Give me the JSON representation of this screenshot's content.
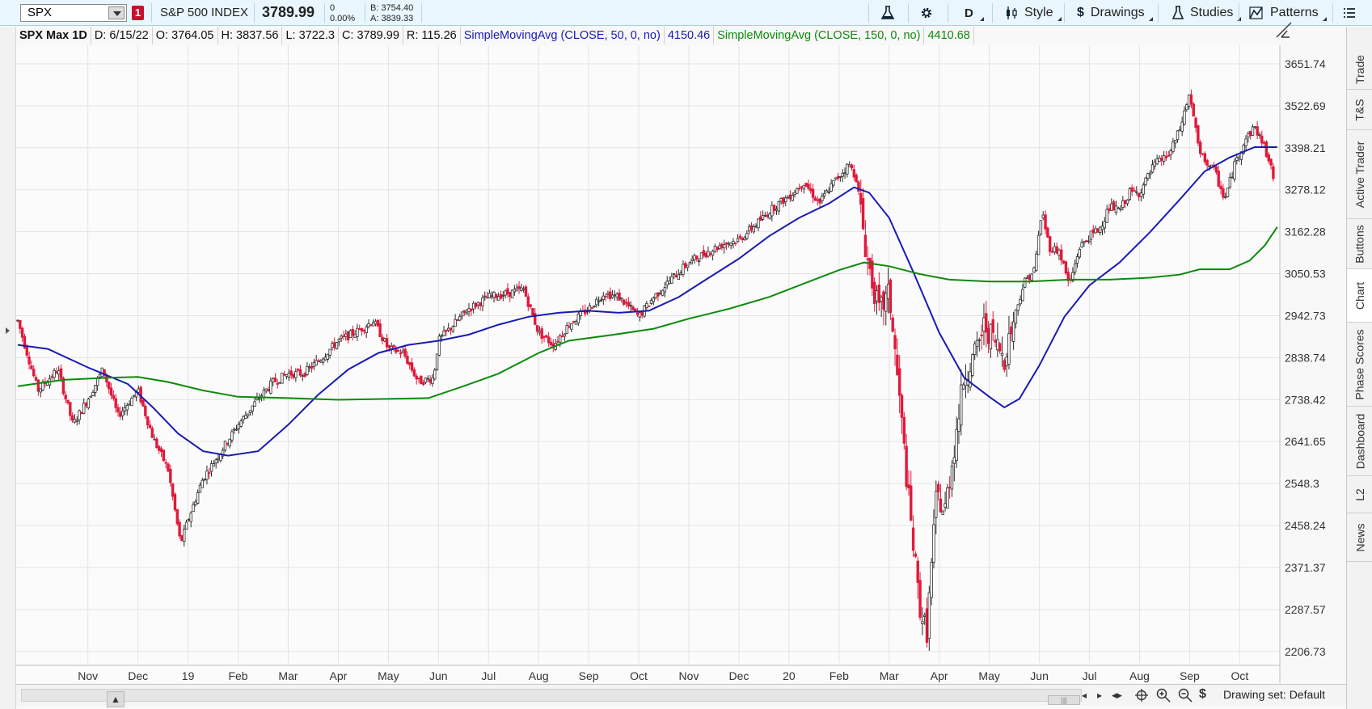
{
  "toolbar": {
    "symbol": "SPX",
    "link_badge": "1",
    "index_name": "S&P 500 INDEX",
    "last_price": "3789.99",
    "net_change": "0",
    "pct_change": "0.00%",
    "bid": "B: 3754.40",
    "ask": "A: 3839.33",
    "aggregation": "D",
    "style_label": "Style",
    "drawings_label": "Drawings",
    "studies_label": "Studies",
    "patterns_label": "Patterns"
  },
  "info": {
    "title": "SPX Max 1D",
    "date": "D: 6/15/22",
    "open": "O: 3764.05",
    "high": "H: 3837.56",
    "low": "L: 3722.3",
    "close": "C: 3789.99",
    "range": "R: 115.26",
    "sma50_label": "SimpleMovingAvg (CLOSE, 50, 0, no)",
    "sma50_value": "4150.46",
    "sma150_label": "SimpleMovingAvg (CLOSE, 150, 0, no)",
    "sma150_value": "4410.68"
  },
  "side_tabs": [
    "Trade",
    "T&S",
    "Active Trader",
    "Buttons",
    "Chart",
    "Phase Scores",
    "Dashboard",
    "L2",
    "News"
  ],
  "bottom": {
    "drawing_set": "Drawing set: Default"
  },
  "colors": {
    "up_candle": "#2b2b2b",
    "down_candle": "#e0193b",
    "sma50": "#1a1ab4",
    "sma150": "#0c8a0c",
    "grid": "#e3e3e3"
  },
  "chart_data": {
    "type": "candlestick",
    "y_axis_ticks": [
      "3651.74",
      "3522.69",
      "3398.21",
      "3278.12",
      "3162.28",
      "3050.53",
      "2942.73",
      "2838.74",
      "2738.42",
      "2641.65",
      "2548.3",
      "2458.24",
      "2371.37",
      "2287.57",
      "2206.73"
    ],
    "y_scale": "log",
    "ylim": [
      2170,
      3700
    ],
    "x_axis_labels": [
      "Nov",
      "Dec",
      "19",
      "Feb",
      "Mar",
      "Apr",
      "May",
      "Jun",
      "Jul",
      "Aug",
      "Sep",
      "Oct",
      "Nov",
      "Dec",
      "20",
      "Feb",
      "Mar",
      "Apr",
      "May",
      "Jun",
      "Jul",
      "Aug",
      "Sep",
      "Oct"
    ],
    "x_axis_label_months": [
      10,
      11,
      12,
      13,
      14,
      15,
      16,
      17,
      18,
      19,
      20,
      21,
      22,
      23,
      24,
      25,
      26,
      27,
      28,
      29,
      30,
      31,
      32,
      33
    ],
    "x_range_months": [
      8.6,
      33.85
    ],
    "grid": true,
    "price_path": [
      {
        "m": 8.6,
        "v": 2930
      },
      {
        "m": 9.0,
        "v": 2760
      },
      {
        "m": 9.4,
        "v": 2810
      },
      {
        "m": 9.7,
        "v": 2680
      },
      {
        "m": 10.0,
        "v": 2740
      },
      {
        "m": 10.3,
        "v": 2810
      },
      {
        "m": 10.6,
        "v": 2700
      },
      {
        "m": 11.0,
        "v": 2760
      },
      {
        "m": 11.3,
        "v": 2650
      },
      {
        "m": 11.6,
        "v": 2580
      },
      {
        "m": 11.85,
        "v": 2420
      },
      {
        "m": 12.0,
        "v": 2470
      },
      {
        "m": 12.3,
        "v": 2560
      },
      {
        "m": 12.6,
        "v": 2610
      },
      {
        "m": 13.0,
        "v": 2680
      },
      {
        "m": 13.4,
        "v": 2740
      },
      {
        "m": 13.7,
        "v": 2780
      },
      {
        "m": 14.0,
        "v": 2800
      },
      {
        "m": 14.3,
        "v": 2800
      },
      {
        "m": 14.6,
        "v": 2830
      },
      {
        "m": 15.0,
        "v": 2880
      },
      {
        "m": 15.4,
        "v": 2905
      },
      {
        "m": 15.7,
        "v": 2930
      },
      {
        "m": 16.0,
        "v": 2860
      },
      {
        "m": 16.3,
        "v": 2850
      },
      {
        "m": 16.6,
        "v": 2780
      },
      {
        "m": 16.9,
        "v": 2790
      },
      {
        "m": 17.0,
        "v": 2880
      },
      {
        "m": 17.3,
        "v": 2920
      },
      {
        "m": 17.6,
        "v": 2960
      },
      {
        "m": 18.0,
        "v": 2990
      },
      {
        "m": 18.4,
        "v": 3000
      },
      {
        "m": 18.7,
        "v": 3010
      },
      {
        "m": 19.0,
        "v": 2900
      },
      {
        "m": 19.3,
        "v": 2870
      },
      {
        "m": 19.6,
        "v": 2920
      },
      {
        "m": 20.0,
        "v": 2960
      },
      {
        "m": 20.3,
        "v": 3000
      },
      {
        "m": 20.6,
        "v": 2990
      },
      {
        "m": 21.0,
        "v": 2940
      },
      {
        "m": 21.3,
        "v": 2990
      },
      {
        "m": 21.6,
        "v": 3030
      },
      {
        "m": 22.0,
        "v": 3080
      },
      {
        "m": 22.4,
        "v": 3110
      },
      {
        "m": 22.7,
        "v": 3130
      },
      {
        "m": 23.0,
        "v": 3140
      },
      {
        "m": 23.4,
        "v": 3190
      },
      {
        "m": 23.7,
        "v": 3230
      },
      {
        "m": 24.0,
        "v": 3260
      },
      {
        "m": 24.3,
        "v": 3300
      },
      {
        "m": 24.6,
        "v": 3240
      },
      {
        "m": 24.9,
        "v": 3300
      },
      {
        "m": 25.2,
        "v": 3350
      },
      {
        "m": 25.35,
        "v": 3310
      },
      {
        "m": 25.55,
        "v": 3100
      },
      {
        "m": 25.8,
        "v": 2950
      },
      {
        "m": 26.0,
        "v": 3000
      },
      {
        "m": 26.2,
        "v": 2750
      },
      {
        "m": 26.4,
        "v": 2500
      },
      {
        "m": 26.6,
        "v": 2300
      },
      {
        "m": 26.75,
        "v": 2240
      },
      {
        "m": 26.95,
        "v": 2530
      },
      {
        "m": 27.1,
        "v": 2480
      },
      {
        "m": 27.3,
        "v": 2630
      },
      {
        "m": 27.5,
        "v": 2800
      },
      {
        "m": 27.7,
        "v": 2840
      },
      {
        "m": 27.9,
        "v": 2920
      },
      {
        "m": 28.1,
        "v": 2880
      },
      {
        "m": 28.3,
        "v": 2840
      },
      {
        "m": 28.5,
        "v": 2940
      },
      {
        "m": 28.7,
        "v": 3030
      },
      {
        "m": 28.9,
        "v": 3060
      },
      {
        "m": 29.05,
        "v": 3220
      },
      {
        "m": 29.2,
        "v": 3120
      },
      {
        "m": 29.4,
        "v": 3110
      },
      {
        "m": 29.6,
        "v": 3020
      },
      {
        "m": 29.8,
        "v": 3120
      },
      {
        "m": 30.0,
        "v": 3150
      },
      {
        "m": 30.2,
        "v": 3170
      },
      {
        "m": 30.4,
        "v": 3230
      },
      {
        "m": 30.6,
        "v": 3220
      },
      {
        "m": 30.8,
        "v": 3270
      },
      {
        "m": 31.0,
        "v": 3270
      },
      {
        "m": 31.3,
        "v": 3350
      },
      {
        "m": 31.6,
        "v": 3380
      },
      {
        "m": 31.8,
        "v": 3450
      },
      {
        "m": 32.0,
        "v": 3560
      },
      {
        "m": 32.2,
        "v": 3380
      },
      {
        "m": 32.5,
        "v": 3330
      },
      {
        "m": 32.7,
        "v": 3250
      },
      {
        "m": 32.9,
        "v": 3350
      },
      {
        "m": 33.1,
        "v": 3420
      },
      {
        "m": 33.3,
        "v": 3460
      },
      {
        "m": 33.5,
        "v": 3400
      },
      {
        "m": 33.7,
        "v": 3300
      }
    ],
    "series": [
      {
        "name": "SimpleMovingAvg (CLOSE, 50, 0, no)",
        "points": [
          {
            "m": 8.6,
            "v": 2870
          },
          {
            "m": 9.2,
            "v": 2860
          },
          {
            "m": 10.0,
            "v": 2815
          },
          {
            "m": 10.8,
            "v": 2775
          },
          {
            "m": 11.3,
            "v": 2720
          },
          {
            "m": 11.8,
            "v": 2660
          },
          {
            "m": 12.3,
            "v": 2620
          },
          {
            "m": 12.8,
            "v": 2610
          },
          {
            "m": 13.4,
            "v": 2620
          },
          {
            "m": 14.0,
            "v": 2680
          },
          {
            "m": 14.6,
            "v": 2750
          },
          {
            "m": 15.2,
            "v": 2810
          },
          {
            "m": 15.8,
            "v": 2850
          },
          {
            "m": 16.4,
            "v": 2870
          },
          {
            "m": 17.0,
            "v": 2880
          },
          {
            "m": 17.6,
            "v": 2895
          },
          {
            "m": 18.2,
            "v": 2920
          },
          {
            "m": 18.8,
            "v": 2940
          },
          {
            "m": 19.4,
            "v": 2950
          },
          {
            "m": 20.0,
            "v": 2955
          },
          {
            "m": 20.6,
            "v": 2950
          },
          {
            "m": 21.2,
            "v": 2955
          },
          {
            "m": 21.8,
            "v": 2990
          },
          {
            "m": 22.4,
            "v": 3040
          },
          {
            "m": 23.0,
            "v": 3090
          },
          {
            "m": 23.6,
            "v": 3150
          },
          {
            "m": 24.2,
            "v": 3200
          },
          {
            "m": 24.8,
            "v": 3240
          },
          {
            "m": 25.3,
            "v": 3285
          },
          {
            "m": 25.6,
            "v": 3270
          },
          {
            "m": 26.0,
            "v": 3200
          },
          {
            "m": 26.5,
            "v": 3050
          },
          {
            "m": 27.0,
            "v": 2900
          },
          {
            "m": 27.5,
            "v": 2790
          },
          {
            "m": 28.0,
            "v": 2745
          },
          {
            "m": 28.3,
            "v": 2720
          },
          {
            "m": 28.6,
            "v": 2740
          },
          {
            "m": 29.0,
            "v": 2820
          },
          {
            "m": 29.5,
            "v": 2940
          },
          {
            "m": 30.0,
            "v": 3020
          },
          {
            "m": 30.6,
            "v": 3080
          },
          {
            "m": 31.2,
            "v": 3160
          },
          {
            "m": 31.8,
            "v": 3250
          },
          {
            "m": 32.3,
            "v": 3330
          },
          {
            "m": 32.8,
            "v": 3370
          },
          {
            "m": 33.3,
            "v": 3400
          },
          {
            "m": 33.75,
            "v": 3400
          }
        ]
      },
      {
        "name": "SimpleMovingAvg (CLOSE, 150, 0, no)",
        "points": [
          {
            "m": 8.6,
            "v": 2770
          },
          {
            "m": 9.5,
            "v": 2785
          },
          {
            "m": 10.4,
            "v": 2790
          },
          {
            "m": 11.0,
            "v": 2792
          },
          {
            "m": 11.6,
            "v": 2780
          },
          {
            "m": 12.3,
            "v": 2760
          },
          {
            "m": 13.0,
            "v": 2745
          },
          {
            "m": 14.0,
            "v": 2742
          },
          {
            "m": 15.0,
            "v": 2738
          },
          {
            "m": 16.0,
            "v": 2740
          },
          {
            "m": 16.8,
            "v": 2742
          },
          {
            "m": 17.5,
            "v": 2770
          },
          {
            "m": 18.2,
            "v": 2800
          },
          {
            "m": 19.0,
            "v": 2850
          },
          {
            "m": 19.6,
            "v": 2880
          },
          {
            "m": 20.5,
            "v": 2895
          },
          {
            "m": 21.3,
            "v": 2910
          },
          {
            "m": 22.0,
            "v": 2935
          },
          {
            "m": 22.8,
            "v": 2960
          },
          {
            "m": 23.6,
            "v": 2990
          },
          {
            "m": 24.4,
            "v": 3030
          },
          {
            "m": 25.0,
            "v": 3060
          },
          {
            "m": 25.5,
            "v": 3080
          },
          {
            "m": 26.0,
            "v": 3070
          },
          {
            "m": 26.6,
            "v": 3050
          },
          {
            "m": 27.2,
            "v": 3035
          },
          {
            "m": 28.0,
            "v": 3030
          },
          {
            "m": 28.8,
            "v": 3030
          },
          {
            "m": 29.6,
            "v": 3035
          },
          {
            "m": 30.4,
            "v": 3035
          },
          {
            "m": 31.2,
            "v": 3040
          },
          {
            "m": 31.8,
            "v": 3048
          },
          {
            "m": 32.2,
            "v": 3062
          },
          {
            "m": 32.8,
            "v": 3062
          },
          {
            "m": 33.2,
            "v": 3085
          },
          {
            "m": 33.5,
            "v": 3125
          },
          {
            "m": 33.75,
            "v": 3175
          }
        ]
      }
    ]
  }
}
